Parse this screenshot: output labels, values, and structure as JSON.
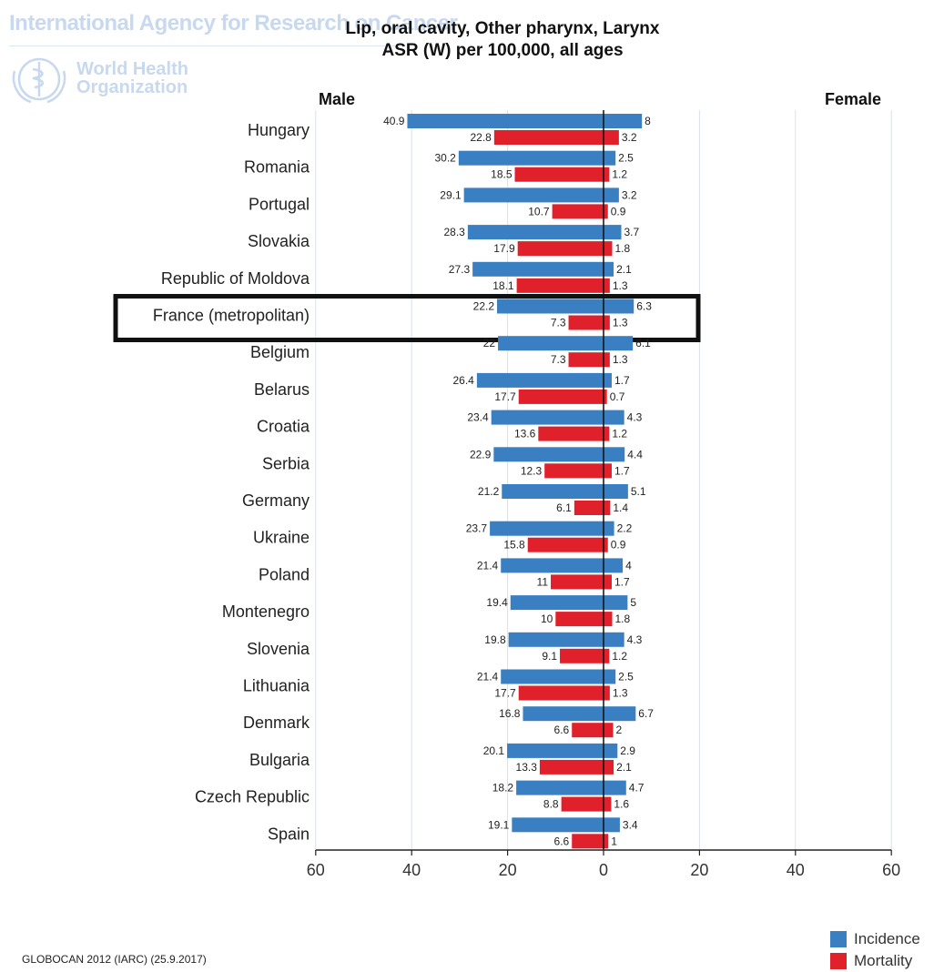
{
  "watermark": {
    "agency": "International Agency for Research on Cancer",
    "org_line1": "World Health",
    "org_line2": "Organization"
  },
  "colors": {
    "incidence": "#3a7fc1",
    "mortality": "#e0202a",
    "grid": "#d8e0ea",
    "axis": "#222222",
    "highlight_box": "#111111"
  },
  "source": "GLOBOCAN 2012 (IARC) (25.9.2017)",
  "chart_data": {
    "type": "bar",
    "orientation": "horizontal",
    "title": "Lip, oral cavity, Other pharynx, Larynx",
    "subtitle": "ASR (W) per 100,000, all ages",
    "left_label": "Male",
    "right_label": "Female",
    "xlim": [
      -60,
      60
    ],
    "ticks": [
      {
        "value": -60,
        "label": "60"
      },
      {
        "value": -40,
        "label": "40"
      },
      {
        "value": -20,
        "label": "20"
      },
      {
        "value": 0,
        "label": "0"
      },
      {
        "value": 20,
        "label": "20"
      },
      {
        "value": 40,
        "label": "40"
      },
      {
        "value": 60,
        "label": "60"
      }
    ],
    "grid": true,
    "legend": {
      "position": "bottom-right",
      "entries": [
        "Incidence",
        "Mortality"
      ]
    },
    "highlighted_category": "France (metropolitan)",
    "categories": [
      "Hungary",
      "Romania",
      "Portugal",
      "Slovakia",
      "Republic of Moldova",
      "France (metropolitan)",
      "Belgium",
      "Belarus",
      "Croatia",
      "Serbia",
      "Germany",
      "Ukraine",
      "Poland",
      "Montenegro",
      "Slovenia",
      "Lithuania",
      "Denmark",
      "Bulgaria",
      "Czech Republic",
      "Spain"
    ],
    "series": [
      {
        "name": "Incidence",
        "sex": "male",
        "values": [
          40.9,
          30.2,
          29.1,
          28.3,
          27.3,
          22.2,
          22,
          26.4,
          23.4,
          22.9,
          21.2,
          23.7,
          21.4,
          19.4,
          19.8,
          21.4,
          16.8,
          20.1,
          18.2,
          19.1
        ],
        "labels": [
          "40.9",
          "30.2",
          "29.1",
          "28.3",
          "27.3",
          "22.2",
          "22",
          "26.4",
          "23.4",
          "22.9",
          "21.2",
          "23.7",
          "21.4",
          "19.4",
          "19.8",
          "21.4",
          "16.8",
          "20.1",
          "18.2",
          "19.1"
        ]
      },
      {
        "name": "Mortality",
        "sex": "male",
        "values": [
          22.8,
          18.5,
          10.7,
          17.9,
          18.1,
          7.3,
          7.3,
          17.7,
          13.6,
          12.3,
          6.1,
          15.8,
          11,
          10,
          9.1,
          17.7,
          6.6,
          13.3,
          8.8,
          6.6
        ],
        "labels": [
          "22.8",
          "18.5",
          "10.7",
          "17.9",
          "18.1",
          "7.3",
          "7.3",
          "17.7",
          "13.6",
          "12.3",
          "6.1",
          "15.8",
          "11",
          "10",
          "9.1",
          "17.7",
          "6.6",
          "13.3",
          "8.8",
          "6.6"
        ]
      },
      {
        "name": "Incidence",
        "sex": "female",
        "values": [
          8,
          2.5,
          3.2,
          3.7,
          2.1,
          6.3,
          6.1,
          1.7,
          4.3,
          4.4,
          5.1,
          2.2,
          4,
          5,
          4.3,
          2.5,
          6.7,
          2.9,
          4.7,
          3.4
        ],
        "labels": [
          "8",
          "2.5",
          "3.2",
          "3.7",
          "2.1",
          "6.3",
          "6.1",
          "1.7",
          "4.3",
          "4.4",
          "5.1",
          "2.2",
          "4",
          "5",
          "4.3",
          "2.5",
          "6.7",
          "2.9",
          "4.7",
          "3.4"
        ]
      },
      {
        "name": "Mortality",
        "sex": "female",
        "values": [
          3.2,
          1.2,
          0.9,
          1.8,
          1.3,
          1.3,
          1.3,
          0.7,
          1.2,
          1.7,
          1.4,
          0.9,
          1.7,
          1.8,
          1.2,
          1.3,
          2,
          2.1,
          1.6,
          1
        ],
        "labels": [
          "3.2",
          "1.2",
          "0.9",
          "1.8",
          "1.3",
          "1.3",
          "1.3",
          "0.7",
          "1.2",
          "1.7",
          "1.4",
          "0.9",
          "1.7",
          "1.8",
          "1.2",
          "1.3",
          "2",
          "2.1",
          "1.6",
          "1"
        ]
      }
    ]
  }
}
